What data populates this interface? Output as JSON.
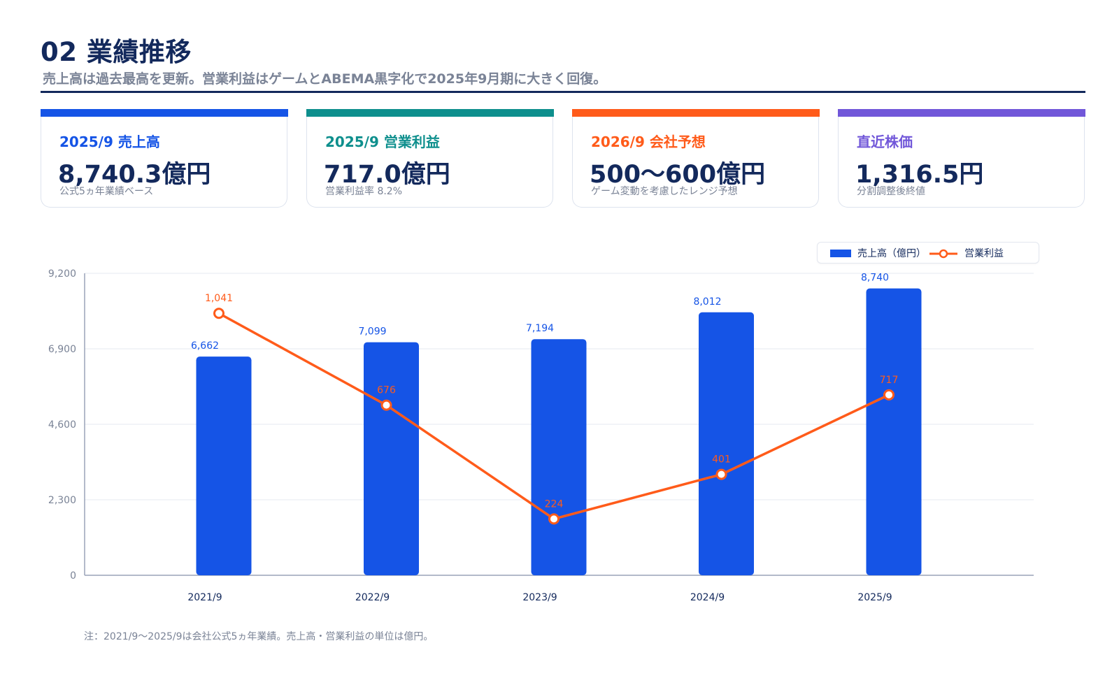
{
  "header": {
    "title": "02 業績推移",
    "subtitle": "売上高は過去最高を更新。営業利益はゲームとABEMA黒字化で2025年9月期に大きく回復。"
  },
  "cards": [
    {
      "label": "2025/9 売上高",
      "value": "8,740.3億円",
      "note": "公式5ヵ年業績ベース",
      "color": "#1554e6"
    },
    {
      "label": "2025/9 営業利益",
      "value": "717.0億円",
      "note": "営業利益率 8.2%",
      "color": "#0e8f8d"
    },
    {
      "label": "2026/9 会社予想",
      "value": "500〜600億円",
      "note": "ゲーム変動を考慮したレンジ予想",
      "color": "#ff5b1a"
    },
    {
      "label": "直近株価",
      "value": "1,316.5円",
      "note": "分割調整後終値",
      "color": "#7157d9"
    }
  ],
  "legend": {
    "bar_label": "売上高（億円）",
    "line_label": "営業利益"
  },
  "chart_data": {
    "type": "bar",
    "categories": [
      "2021/9",
      "2022/9",
      "2023/9",
      "2024/9",
      "2025/9"
    ],
    "series": [
      {
        "name": "売上高（億円）",
        "type": "bar",
        "values": [
          6662,
          7099,
          7194,
          8012,
          8740
        ],
        "labels": [
          "6,662",
          "7,099",
          "7,194",
          "8,012",
          "8,740"
        ],
        "color": "#1554e6"
      },
      {
        "name": "営業利益",
        "type": "line",
        "values": [
          1041,
          676,
          224,
          401,
          717
        ],
        "labels": [
          "1,041",
          "676",
          "224",
          "401",
          "717"
        ],
        "color": "#ff5b1a"
      }
    ],
    "y_axis": {
      "min": 0,
      "max": 9200,
      "ticks": [
        0,
        2300,
        4600,
        6900,
        9200
      ],
      "tick_labels": [
        "0",
        "2,300",
        "4,600",
        "6,900",
        "9,200"
      ]
    },
    "line_axis": {
      "min": 0,
      "max": 1200
    },
    "grid": true,
    "legend_position": "top-right"
  },
  "footnote": "注：2021/9〜2025/9は会社公式5ヵ年業績。売上高・営業利益の単位は億円。"
}
